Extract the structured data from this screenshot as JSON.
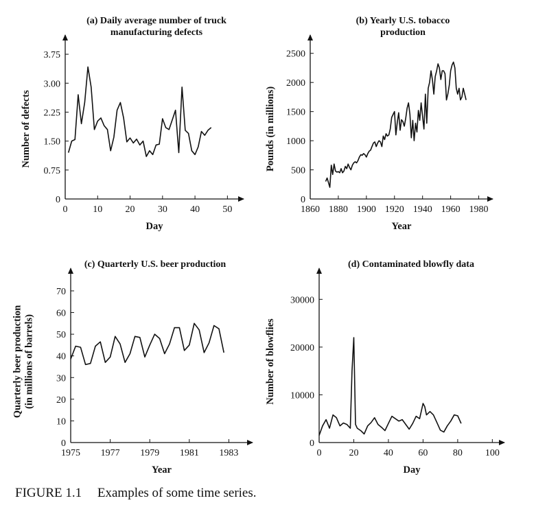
{
  "caption": {
    "label": "FIGURE 1.1",
    "text": "Examples of some time series."
  },
  "chart_data": [
    {
      "type": "line",
      "title_lines": [
        "(a) Daily average number of truck",
        "manufacturing defects"
      ],
      "xlabel": "Day",
      "ylabel_lines": [
        "Number of defects"
      ],
      "xlim": [
        0,
        55
      ],
      "ylim": [
        0,
        4.0
      ],
      "xticks": [
        0,
        10,
        20,
        30,
        40,
        50
      ],
      "yticks": [
        0,
        0.75,
        1.5,
        2.25,
        3.0,
        3.75
      ],
      "xtick_labels": [
        "0",
        "10",
        "20",
        "30",
        "40",
        "50"
      ],
      "ytick_labels": [
        "0",
        "0.75",
        "1.50",
        "2.25",
        "3.00",
        "3.75"
      ],
      "grid": false,
      "series": [
        {
          "x": [
            1,
            2,
            3,
            4,
            5,
            6,
            7,
            8,
            9,
            10,
            11,
            12,
            13,
            14,
            15,
            16,
            17,
            18,
            19,
            20,
            21,
            22,
            23,
            24,
            25,
            26,
            27,
            28,
            29,
            30,
            31,
            32,
            33,
            34,
            35,
            36,
            37,
            38,
            39,
            40,
            41,
            42,
            43,
            44,
            45
          ],
          "y": [
            1.2,
            1.5,
            1.54,
            2.7,
            1.95,
            2.5,
            3.42,
            2.9,
            1.8,
            2.02,
            2.1,
            1.9,
            1.8,
            1.25,
            1.6,
            2.3,
            2.5,
            2.1,
            1.48,
            1.58,
            1.45,
            1.55,
            1.4,
            1.5,
            1.1,
            1.25,
            1.15,
            1.4,
            1.42,
            2.08,
            1.85,
            1.8,
            2.05,
            2.3,
            1.2,
            2.9,
            1.78,
            1.7,
            1.25,
            1.15,
            1.35,
            1.75,
            1.65,
            1.78,
            1.85
          ]
        }
      ]
    },
    {
      "type": "line",
      "title_lines": [
        "(b) Yearly U.S. tobacco",
        "production"
      ],
      "xlabel": "Year",
      "ylabel_lines": [
        "Pounds (in millions)"
      ],
      "xlim": [
        1860,
        1990
      ],
      "ylim": [
        0,
        2650
      ],
      "xticks": [
        1860,
        1880,
        1900,
        1920,
        1940,
        1960,
        1980
      ],
      "yticks": [
        0,
        500,
        1000,
        1500,
        2000,
        2500
      ],
      "xtick_labels": [
        "1860",
        "1880",
        "1900",
        "1920",
        "1940",
        "1960",
        "1980"
      ],
      "ytick_labels": [
        "0",
        "500",
        "1000",
        "1500",
        "2000",
        "2500"
      ],
      "grid": false,
      "series": [
        {
          "x": [
            1871,
            1872,
            1873,
            1874,
            1875,
            1876,
            1877,
            1878,
            1879,
            1880,
            1881,
            1882,
            1883,
            1884,
            1885,
            1886,
            1887,
            1888,
            1889,
            1890,
            1891,
            1892,
            1893,
            1894,
            1895,
            1896,
            1897,
            1898,
            1899,
            1900,
            1901,
            1902,
            1903,
            1904,
            1905,
            1906,
            1907,
            1908,
            1909,
            1910,
            1911,
            1912,
            1913,
            1914,
            1915,
            1916,
            1917,
            1918,
            1919,
            1920,
            1921,
            1922,
            1923,
            1924,
            1925,
            1926,
            1927,
            1928,
            1929,
            1930,
            1931,
            1932,
            1933,
            1934,
            1935,
            1936,
            1937,
            1938,
            1939,
            1940,
            1941,
            1942,
            1943,
            1944,
            1945,
            1946,
            1947,
            1948,
            1949,
            1950,
            1951,
            1952,
            1953,
            1954,
            1955,
            1956,
            1957,
            1958,
            1959,
            1960,
            1961,
            1962,
            1963,
            1964,
            1965,
            1966,
            1967,
            1968,
            1969,
            1970,
            1971
          ],
          "y": [
            300,
            360,
            280,
            200,
            580,
            420,
            600,
            480,
            460,
            470,
            450,
            520,
            450,
            480,
            560,
            520,
            600,
            540,
            500,
            580,
            620,
            640,
            620,
            660,
            720,
            760,
            750,
            780,
            760,
            720,
            780,
            820,
            840,
            900,
            960,
            980,
            900,
            960,
            1000,
            980,
            900,
            1080,
            1020,
            1120,
            1080,
            1100,
            1200,
            1400,
            1450,
            1500,
            1100,
            1320,
            1480,
            1180,
            1360,
            1330,
            1250,
            1380,
            1560,
            1650,
            1450,
            1050,
            1350,
            1000,
            1300,
            1150,
            1520,
            1350,
            1650,
            1420,
            1200,
            1800,
            1300,
            1900,
            2000,
            2200,
            2050,
            1800,
            2100,
            2200,
            2320,
            2250,
            2050,
            2200,
            2200,
            2150,
            1700,
            1800,
            1950,
            2200,
            2300,
            2350,
            2250,
            1900,
            1800,
            1900,
            1700,
            1750,
            1900,
            1800,
            1700
          ]
        }
      ]
    },
    {
      "type": "line",
      "title_lines": [
        "(c) Quarterly U.S. beer production"
      ],
      "xlabel": "Year",
      "ylabel_lines": [
        "Quarterly beer production",
        "(in millions of barrels)"
      ],
      "xlim": [
        1975,
        1984.2
      ],
      "ylim": [
        0,
        76
      ],
      "xticks": [
        1975,
        1977,
        1979,
        1981,
        1983
      ],
      "yticks": [
        0,
        10,
        20,
        30,
        40,
        50,
        60,
        70
      ],
      "xtick_labels": [
        "1975",
        "1977",
        "1979",
        "1981",
        "1983"
      ],
      "ytick_labels": [
        "0",
        "10",
        "20",
        "30",
        "40",
        "50",
        "60",
        "70"
      ],
      "grid": false,
      "series": [
        {
          "x": [
            1975.0,
            1975.25,
            1975.5,
            1975.75,
            1976.0,
            1976.25,
            1976.5,
            1976.75,
            1977.0,
            1977.25,
            1977.5,
            1977.75,
            1978.0,
            1978.25,
            1978.5,
            1978.75,
            1979.0,
            1979.25,
            1979.5,
            1979.75,
            1980.0,
            1980.25,
            1980.5,
            1980.75,
            1981.0,
            1981.25,
            1981.5,
            1981.75,
            1982.0,
            1982.25,
            1982.5,
            1982.75
          ],
          "y": [
            38.5,
            44.5,
            44.0,
            36.0,
            36.5,
            44.5,
            46.5,
            37.0,
            39.5,
            49.0,
            45.5,
            37.0,
            41.0,
            49.0,
            48.5,
            39.5,
            45.0,
            50.0,
            48.0,
            41.0,
            45.5,
            53.0,
            53.0,
            42.5,
            45.0,
            55.0,
            52.0,
            41.5,
            46.0,
            54.0,
            52.5,
            41.5
          ]
        }
      ]
    },
    {
      "type": "line",
      "title_lines": [
        "(d) Contaminated blowfly data"
      ],
      "xlabel": "Day",
      "ylabel_lines": [
        "Number of blowflies"
      ],
      "xlim": [
        0,
        107
      ],
      "ylim": [
        0,
        34500
      ],
      "xticks": [
        0,
        20,
        40,
        60,
        80,
        100
      ],
      "yticks": [
        0,
        10000,
        20000,
        30000
      ],
      "xtick_labels": [
        "0",
        "20",
        "40",
        "60",
        "80",
        "100"
      ],
      "ytick_labels": [
        "0",
        "10000",
        "20000",
        "30000"
      ],
      "grid": false,
      "series": [
        {
          "x": [
            0,
            2,
            4,
            6,
            8,
            10,
            12,
            14,
            16,
            18,
            19,
            20,
            21,
            22,
            24,
            26,
            28,
            30,
            32,
            34,
            36,
            38,
            40,
            42,
            44,
            46,
            48,
            50,
            52,
            54,
            56,
            58,
            60,
            61,
            62,
            64,
            66,
            68,
            70,
            72,
            74,
            76,
            78,
            80,
            82
          ],
          "y": [
            1500,
            3500,
            4800,
            3000,
            5800,
            5200,
            3500,
            4100,
            3800,
            3000,
            15000,
            22000,
            3800,
            3000,
            2500,
            1800,
            3500,
            4200,
            5200,
            3800,
            3200,
            2500,
            4000,
            5500,
            5000,
            4500,
            4800,
            3800,
            2800,
            4000,
            5500,
            5000,
            8200,
            7500,
            5800,
            6500,
            5800,
            4200,
            2600,
            2200,
            3500,
            4500,
            5800,
            5600,
            4000
          ]
        }
      ]
    }
  ]
}
